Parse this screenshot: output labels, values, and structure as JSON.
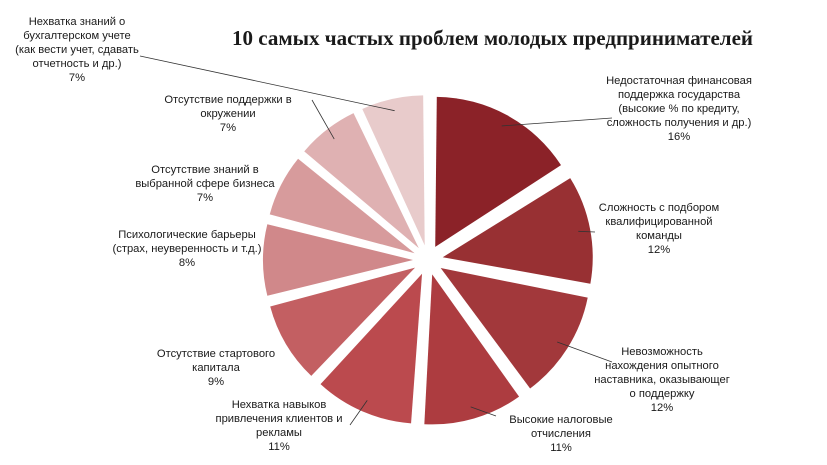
{
  "chart_data": {
    "type": "pie",
    "title": "10 самых частых проблем молодых предпринимателей",
    "slices": [
      {
        "label": "Недостаточная финансовая поддержка государства (высокие % по кредиту, сложность получения и др.)",
        "percent_label": "16%",
        "value": 16,
        "color": "#8b2228"
      },
      {
        "label": "Сложность с подбором квалифицированной команды",
        "percent_label": "12%",
        "value": 12,
        "color": "#983033"
      },
      {
        "label": "Невозможность нахождения опытного наставника, оказывающег о поддержку",
        "percent_label": "12%",
        "value": 12,
        "color": "#a2383b"
      },
      {
        "label": "Высокие налоговые отчисления",
        "percent_label": "11%",
        "value": 11,
        "color": "#ad3c40"
      },
      {
        "label": "Нехватка навыков привлечения клиентов и рекламы",
        "percent_label": "11%",
        "value": 11,
        "color": "#bb4a4e"
      },
      {
        "label": "Отсутствие стартового капитала",
        "percent_label": "9%",
        "value": 9,
        "color": "#c35f62"
      },
      {
        "label": "Психологические барьеры (страх, неуверенность и т.д.)",
        "percent_label": "8%",
        "value": 8,
        "color": "#d0888a"
      },
      {
        "label": "Отсутствие знаний в выбранной сфере бизнеса",
        "percent_label": "7%",
        "value": 7,
        "color": "#d79b9c"
      },
      {
        "label": "Отсутствие поддержки в окружении",
        "percent_label": "7%",
        "value": 7,
        "color": "#dfb1b2"
      },
      {
        "label": "Нехватка знаний о бухгалтерском учете (как вести учет, сдавать отчетность и др.)",
        "percent_label": "7%",
        "value": 7,
        "color": "#e8cbcb"
      }
    ]
  }
}
